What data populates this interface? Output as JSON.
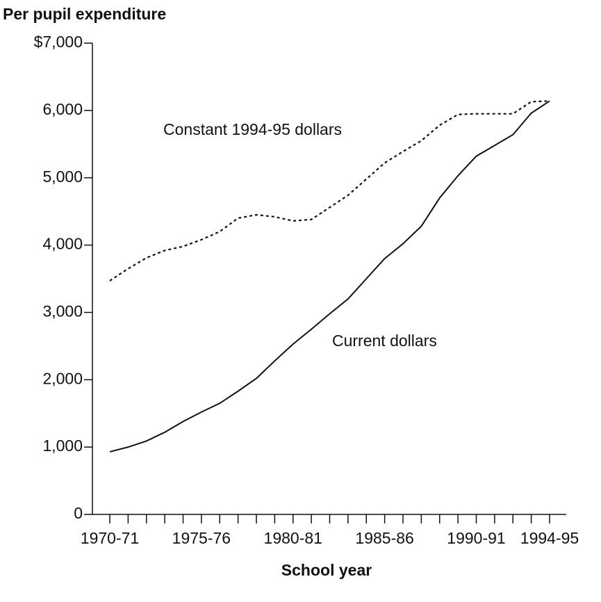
{
  "chart_data": {
    "type": "line",
    "title": "Per pupil expenditure",
    "x_label": "School year",
    "categories": [
      "1970-71",
      null,
      null,
      null,
      null,
      "1975-76",
      null,
      null,
      null,
      null,
      "1980-81",
      null,
      null,
      null,
      null,
      "1985-86",
      null,
      null,
      null,
      null,
      "1990-91",
      null,
      null,
      null,
      "1994-95"
    ],
    "series": [
      {
        "name": "Constant 1994-95 dollars",
        "color": "#111111",
        "style": "dotted",
        "values": [
          3470,
          3650,
          3810,
          3920,
          3980,
          4080,
          4200,
          4400,
          4450,
          4420,
          4360,
          4380,
          4560,
          4740,
          4980,
          5220,
          5390,
          5550,
          5780,
          5940,
          5950,
          5950,
          5950,
          6130,
          6140
        ]
      },
      {
        "name": "Current dollars",
        "color": "#111111",
        "style": "solid",
        "values": [
          930,
          1000,
          1090,
          1220,
          1380,
          1520,
          1650,
          1830,
          2020,
          2280,
          2530,
          2750,
          2980,
          3200,
          3500,
          3800,
          4020,
          4280,
          4700,
          5030,
          5320,
          5480,
          5640,
          5960,
          6140
        ]
      }
    ],
    "ylim": [
      0,
      7000
    ],
    "yticks": [
      0,
      {
        "value": 1000,
        "label": "1,000"
      },
      {
        "value": 2000,
        "label": "2,000"
      },
      {
        "value": 3000,
        "label": "3,000"
      },
      {
        "value": 4000,
        "label": "4,000"
      },
      {
        "value": 5000,
        "label": "5,000"
      },
      {
        "value": 6000,
        "label": "6,000"
      },
      {
        "value": 7000,
        "label": "$7,000"
      }
    ],
    "grid": false
  }
}
